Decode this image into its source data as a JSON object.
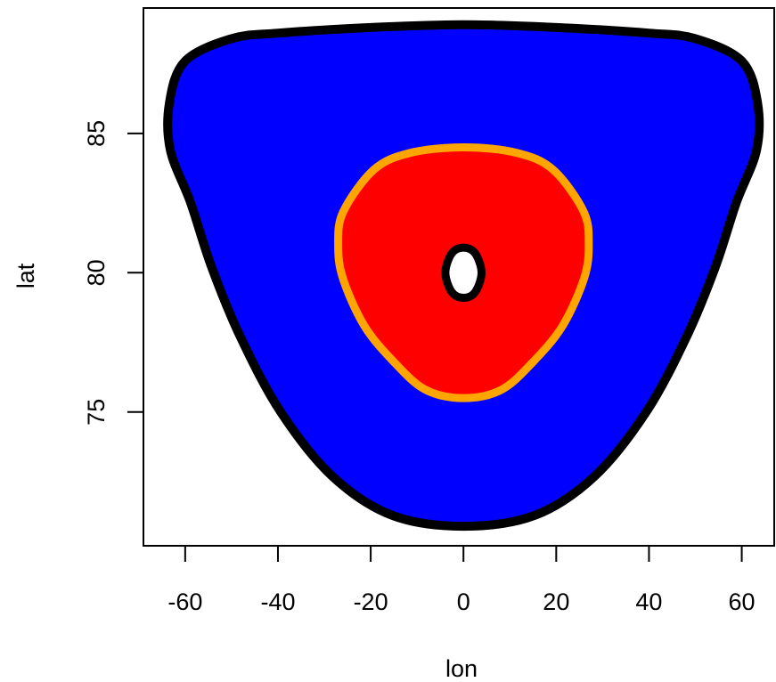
{
  "chart_data": {
    "type": "contour",
    "xlabel": "lon",
    "ylabel": "lat",
    "xlim": [
      -69,
      67
    ],
    "ylim": [
      70.2,
      89.5
    ],
    "x_ticks": [
      -60,
      -40,
      -20,
      0,
      20,
      40,
      60
    ],
    "y_ticks": [
      75,
      80,
      85
    ],
    "grid": false,
    "legend": "none",
    "colors": {
      "outer_fill": "#0000ff",
      "outer_edge": "#000000",
      "inner_fill": "#ff0000",
      "inner_edge": "#ffa500",
      "center_fill": "#ffffff",
      "center_edge": "#000000"
    },
    "regions": [
      {
        "fill": "#0000ff",
        "edge": "#000000",
        "points": [
          [
            0.0,
            70.9
          ],
          [
            -15.5,
            71.3
          ],
          [
            -28.3,
            72.7
          ],
          [
            -39.4,
            75.0
          ],
          [
            -48.1,
            77.7
          ],
          [
            -54.3,
            80.2
          ],
          [
            -58.8,
            82.5
          ],
          [
            -63.2,
            84.4
          ],
          [
            -63.4,
            86.1
          ],
          [
            -60.0,
            87.6
          ],
          [
            -50.0,
            88.4
          ],
          [
            -40.0,
            88.6
          ],
          [
            -20.0,
            88.8
          ],
          [
            0.0,
            88.9
          ],
          [
            20.0,
            88.8
          ],
          [
            40.0,
            88.6
          ],
          [
            50.0,
            88.4
          ],
          [
            60.0,
            87.6
          ],
          [
            63.4,
            86.1
          ],
          [
            63.2,
            84.4
          ],
          [
            58.8,
            82.5
          ],
          [
            54.3,
            80.2
          ],
          [
            48.1,
            77.7
          ],
          [
            39.4,
            75.0
          ],
          [
            28.3,
            72.7
          ],
          [
            15.5,
            71.3
          ]
        ]
      },
      {
        "fill": "#ff0000",
        "edge": "#ffa500",
        "points": [
          [
            0.0,
            75.5
          ],
          [
            -8.2,
            75.8
          ],
          [
            -15.0,
            76.8
          ],
          [
            -21.4,
            78.1
          ],
          [
            -26.0,
            79.8
          ],
          [
            -27.0,
            81.0
          ],
          [
            -25.9,
            82.2
          ],
          [
            -19.3,
            83.7
          ],
          [
            -11.5,
            84.3
          ],
          [
            0.0,
            84.5
          ],
          [
            11.5,
            84.3
          ],
          [
            19.3,
            83.7
          ],
          [
            25.9,
            82.2
          ],
          [
            27.0,
            81.0
          ],
          [
            26.0,
            79.8
          ],
          [
            21.4,
            78.1
          ],
          [
            15.0,
            76.8
          ],
          [
            8.2,
            75.8
          ]
        ]
      },
      {
        "fill": "#ffffff",
        "edge": "#000000",
        "points": [
          [
            0.0,
            79.1
          ],
          [
            -2.5,
            79.3
          ],
          [
            -3.9,
            80.0
          ],
          [
            -2.5,
            80.7
          ],
          [
            0.0,
            80.9
          ],
          [
            2.5,
            80.7
          ],
          [
            3.9,
            80.0
          ],
          [
            2.5,
            79.3
          ]
        ]
      }
    ]
  }
}
